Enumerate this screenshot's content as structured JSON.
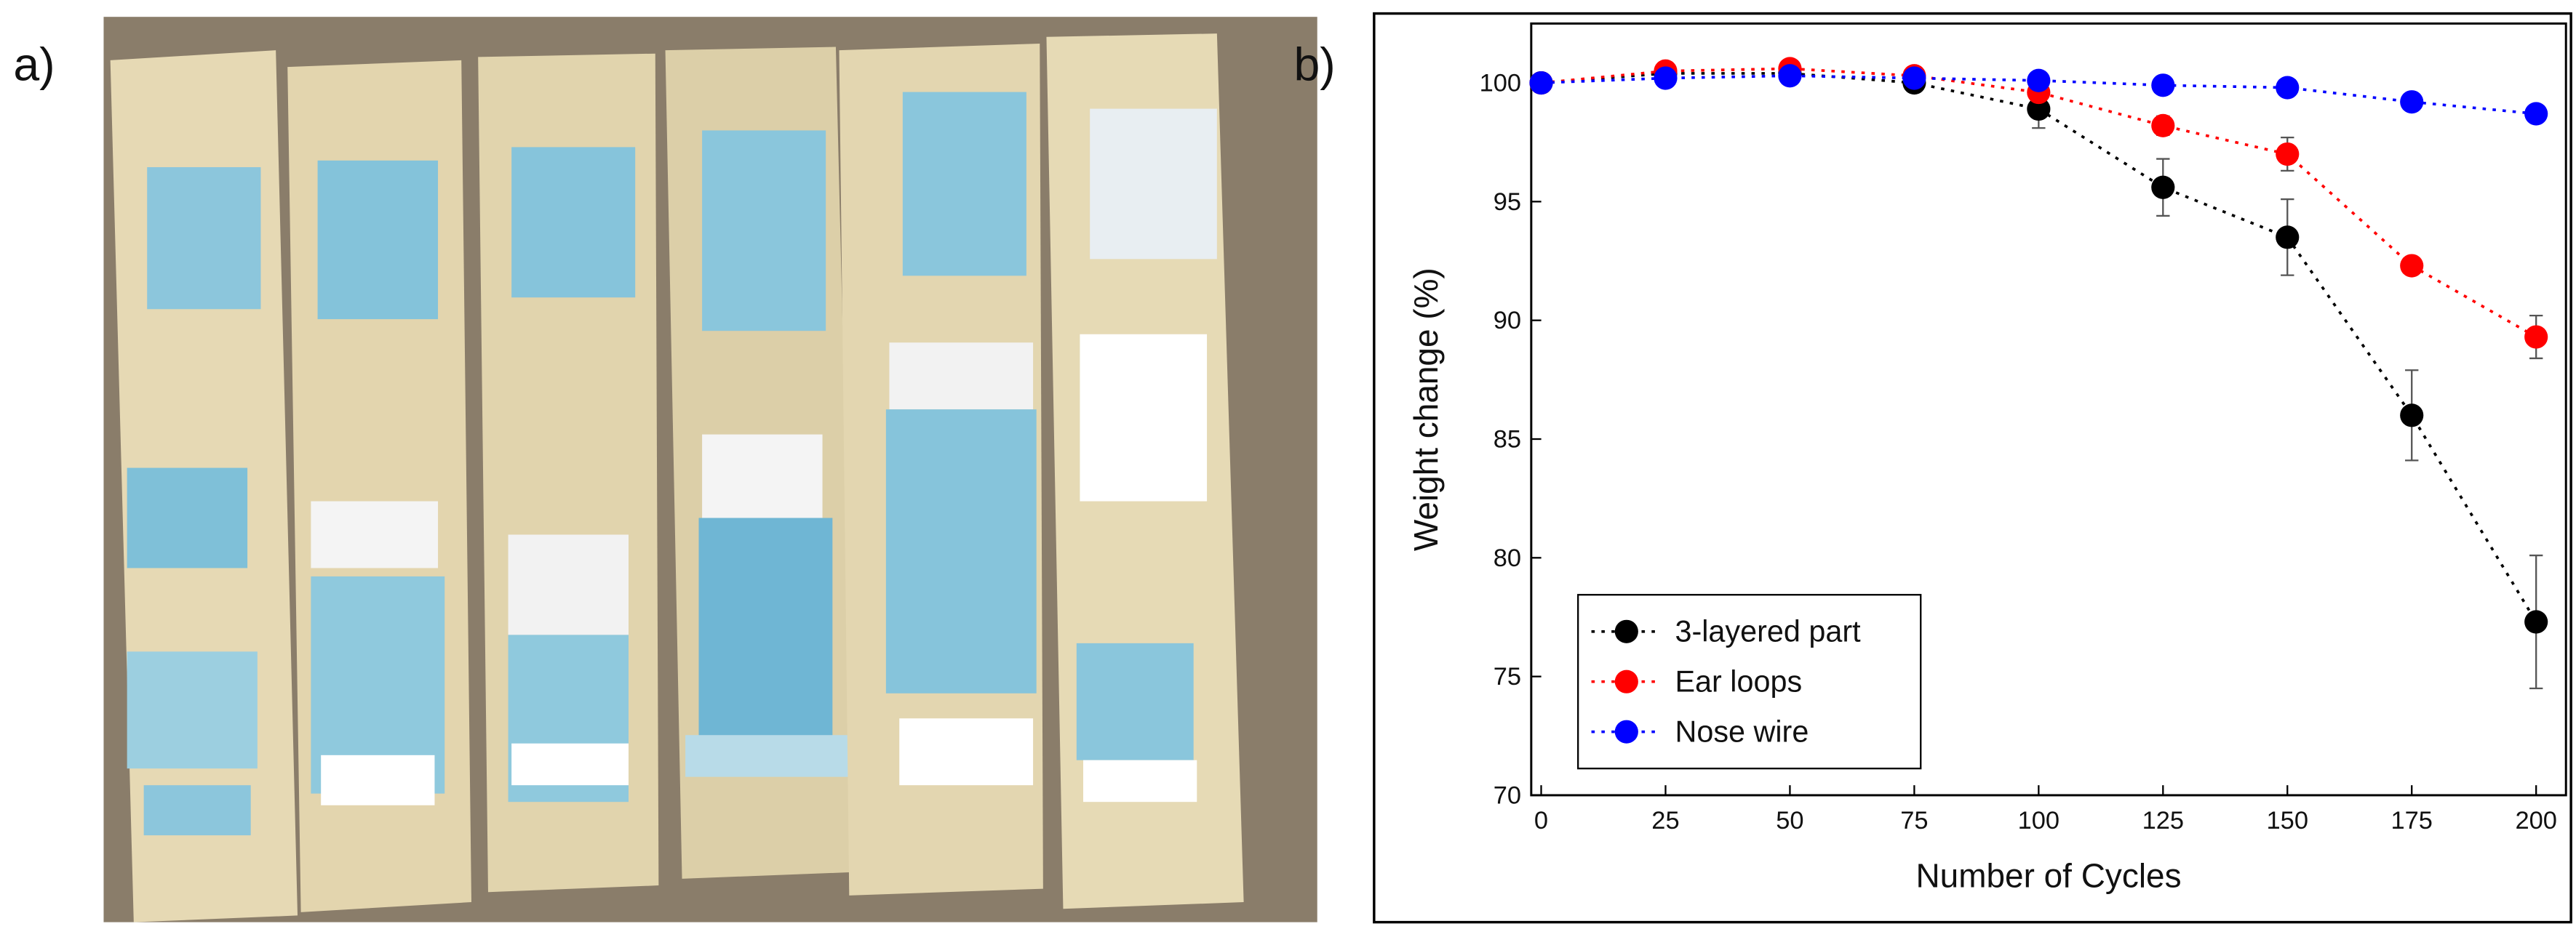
{
  "panel_labels": [
    "a)",
    "b)"
  ],
  "chart_data": {
    "type": "line",
    "x_label": "Number of Cycles",
    "y_label": "Weight change (%)",
    "x": [
      0,
      25,
      50,
      75,
      100,
      125,
      150,
      175,
      200
    ],
    "series": [
      {
        "name": "3-layered part",
        "color": "#000000",
        "values": [
          100,
          100.4,
          100.4,
          100,
          98.9,
          95.6,
          93.5,
          86,
          77.3
        ],
        "errors": [
          0,
          0,
          0,
          0,
          0.8,
          1.2,
          1.6,
          1.9,
          2.8
        ]
      },
      {
        "name": "Ear loops",
        "color": "#ff0000",
        "values": [
          100,
          100.5,
          100.6,
          100.3,
          99.6,
          98.2,
          97,
          92.3,
          89.3
        ],
        "errors": [
          0,
          0,
          0,
          0,
          0.3,
          0.4,
          0.7,
          0.3,
          0.9
        ]
      },
      {
        "name": "Nose wire",
        "color": "#0000ff",
        "values": [
          100,
          100.2,
          100.3,
          100.2,
          100.1,
          99.9,
          99.8,
          99.2,
          98.7
        ],
        "errors": [
          0,
          0,
          0,
          0,
          0,
          0,
          0,
          0,
          0
        ]
      }
    ],
    "xlim": [
      -2,
      206
    ],
    "ylim": [
      70,
      102.5
    ],
    "xticks": [
      0,
      25,
      50,
      75,
      100,
      125,
      150,
      175,
      200
    ],
    "yticks": [
      70,
      75,
      80,
      85,
      90,
      95,
      100
    ],
    "legend": "lower left",
    "line_style": "dotted"
  }
}
